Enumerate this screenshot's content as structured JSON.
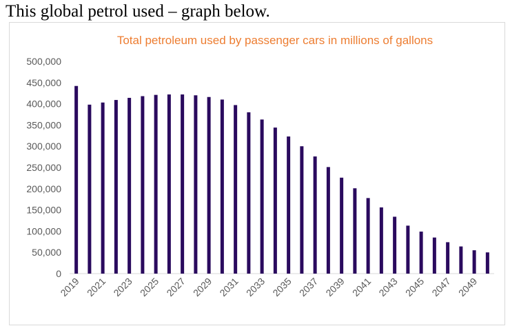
{
  "page": {
    "heading": "This global petrol used – graph below."
  },
  "colors": {
    "bar": "#2a0a5e",
    "title": "#ed7d31",
    "axis": "#d9d9d9",
    "tick": "#595959"
  },
  "chart_data": {
    "type": "bar",
    "title": "Total petroleum used by passenger cars in millions of gallons",
    "xlabel": "",
    "ylabel": "",
    "ylim": [
      0,
      500000
    ],
    "yticks": [
      0,
      50000,
      100000,
      150000,
      200000,
      250000,
      300000,
      350000,
      400000,
      450000,
      500000
    ],
    "ytick_labels": [
      "0",
      "50,000",
      "100,000",
      "150,000",
      "200,000",
      "250,000",
      "300,000",
      "350,000",
      "400,000",
      "450,000",
      "500,000"
    ],
    "categories": [
      "2019",
      "2020",
      "2021",
      "2022",
      "2023",
      "2024",
      "2025",
      "2026",
      "2027",
      "2028",
      "2029",
      "2030",
      "2031",
      "2032",
      "2033",
      "2034",
      "2035",
      "2036",
      "2037",
      "2038",
      "2039",
      "2040",
      "2041",
      "2042",
      "2043",
      "2044",
      "2045",
      "2046",
      "2047",
      "2048",
      "2049",
      "2050"
    ],
    "xtick_labels": [
      "2019",
      "2021",
      "2023",
      "2025",
      "2027",
      "2029",
      "2031",
      "2033",
      "2035",
      "2037",
      "2039",
      "2041",
      "2043",
      "2045",
      "2047",
      "2049"
    ],
    "values": [
      442000,
      398000,
      403000,
      409000,
      414000,
      418000,
      421000,
      422000,
      422000,
      420000,
      416000,
      410000,
      397000,
      380000,
      363000,
      344000,
      323000,
      300000,
      276000,
      251000,
      226000,
      201000,
      178000,
      156000,
      134000,
      113000,
      99000,
      85000,
      74000,
      64000,
      55000,
      50000
    ],
    "grid": false,
    "legend": "none"
  }
}
